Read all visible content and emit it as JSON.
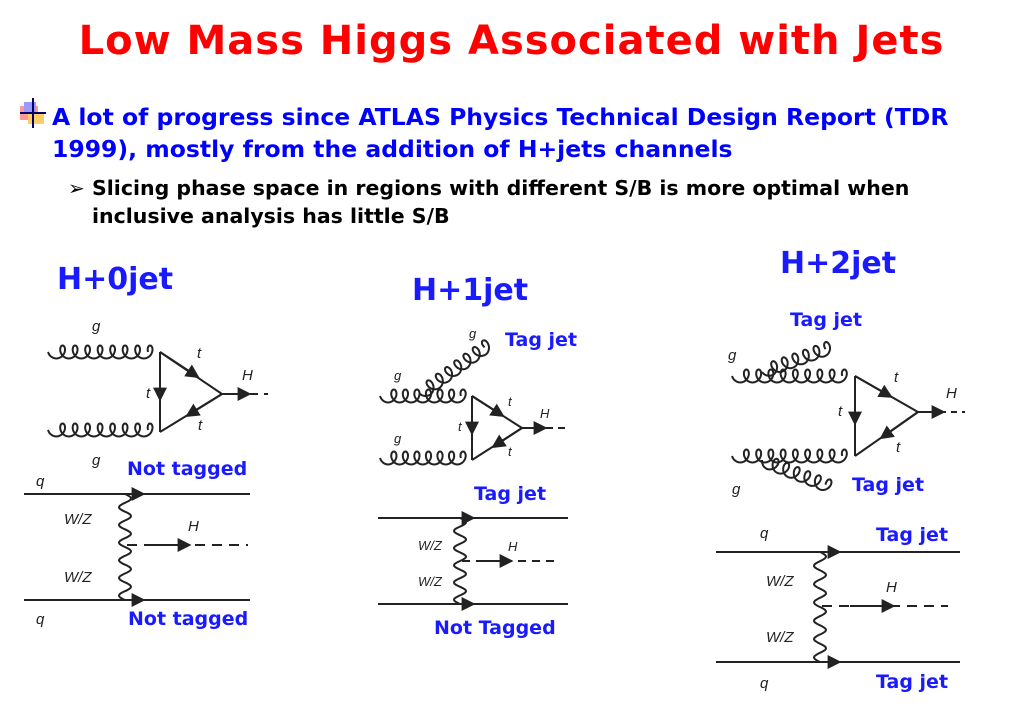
{
  "title": "Low Mass Higgs Associated with Jets",
  "bullet1": "A lot of progress since ATLAS Physics Technical Design Report (TDR 1999), mostly from the addition of H+jets channels",
  "bullet2": "Slicing phase space in regions with different S/B is more optimal when inclusive analysis has little S/B",
  "arrow_glyph": "➢",
  "columns": {
    "h0": {
      "heading": "H+0jet",
      "label_top": "Not tagged",
      "label_bottom": "Not tagged"
    },
    "h1": {
      "heading": "H+1jet",
      "label_top": "Tag jet",
      "label_mid": "Tag jet",
      "label_bottom": "Not Tagged"
    },
    "h2": {
      "heading": "H+2jet",
      "label_a": "Tag jet",
      "label_b": "Tag jet",
      "label_c": "Tag jet",
      "label_d": "Tag jet"
    }
  },
  "particles": {
    "gluon": "g",
    "top": "t",
    "higgs": "H",
    "quark": "q",
    "boson": "W/Z"
  },
  "colors": {
    "title": "#ff0000",
    "blue_text": "#0000ff",
    "labels": "#1a1aff",
    "lines": "#222222"
  }
}
